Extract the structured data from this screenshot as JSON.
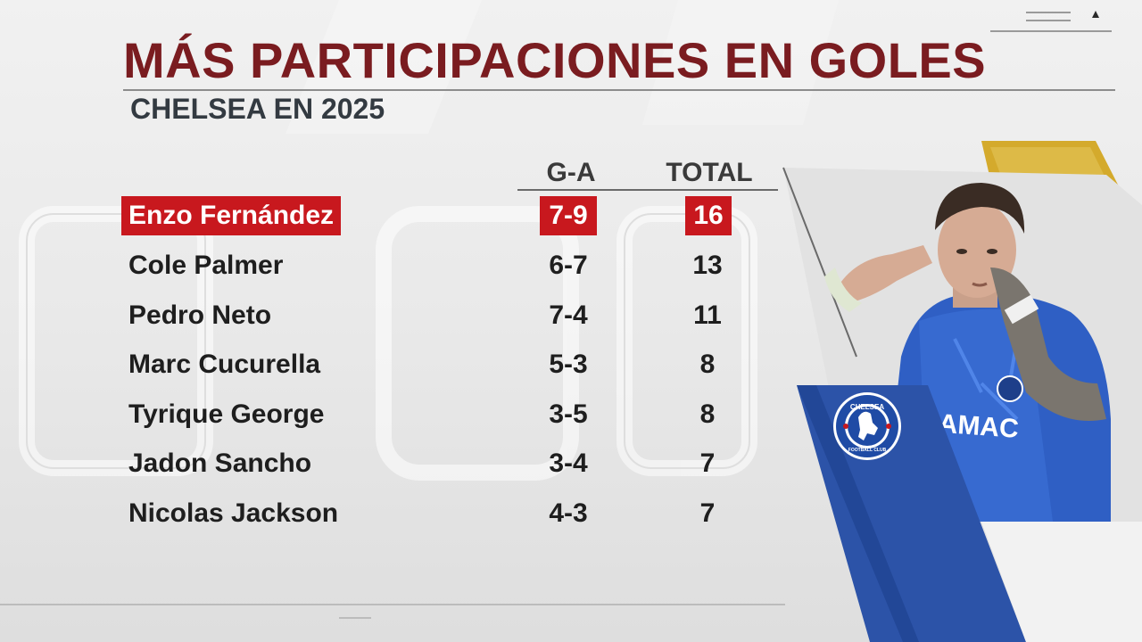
{
  "header": {
    "title": "MÁS PARTICIPACIONES EN GOLES",
    "subtitle": "CHELSEA EN 2025"
  },
  "table": {
    "columns": {
      "ga": "G-A",
      "total": "TOTAL"
    },
    "rows": [
      {
        "name": "Enzo Fernández",
        "ga": "7-9",
        "total": "16",
        "highlight": true
      },
      {
        "name": "Cole Palmer",
        "ga": "6-7",
        "total": "13"
      },
      {
        "name": "Pedro Neto",
        "ga": "7-4",
        "total": "11"
      },
      {
        "name": "Marc Cucurella",
        "ga": "5-3",
        "total": "8"
      },
      {
        "name": "Tyrique George",
        "ga": "3-5",
        "total": "8"
      },
      {
        "name": "Jadon Sancho",
        "ga": "3-4",
        "total": "7"
      },
      {
        "name": "Nicolas Jackson",
        "ga": "4-3",
        "total": "7"
      }
    ]
  },
  "badge": {
    "top_text": "CHELSEA",
    "bottom_text": "FOOTBALL CLUB"
  },
  "jersey_sponsor": "DAMAC",
  "colors": {
    "title": "#7a1c20",
    "highlight": "#c8181e",
    "chelsea_blue": "#2c53a8",
    "gold_accent": "#d4aa2c"
  }
}
